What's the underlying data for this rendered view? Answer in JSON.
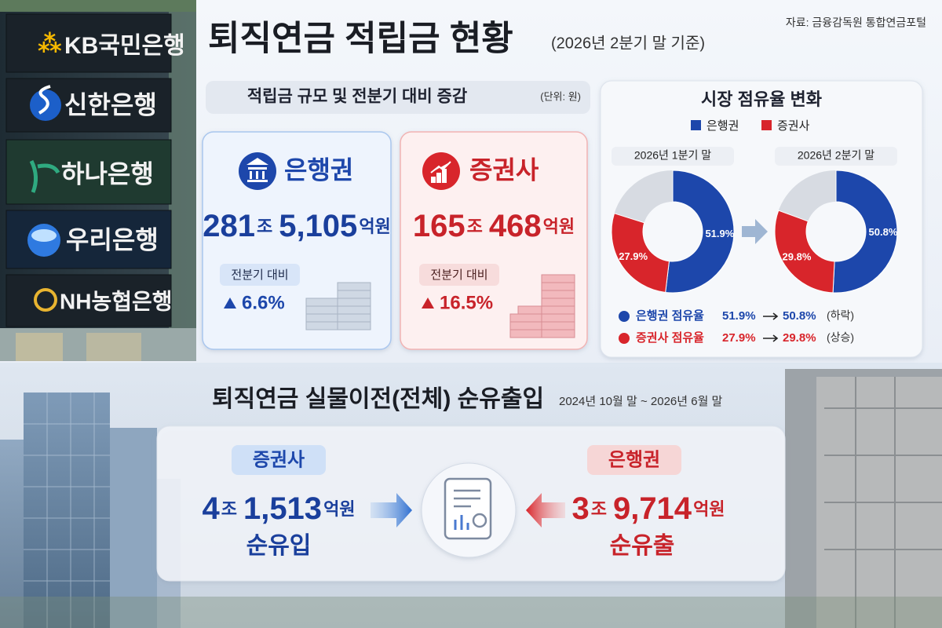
{
  "photo_signs": [
    "KB국민은행",
    "신한은행",
    "하나은행",
    "우리은행",
    "NH농협은행"
  ],
  "header": {
    "title": "퇴직연금 적립금 현황",
    "subtitle": "(2026년 2분기 말 기준)",
    "source": "자료: 금융감독원 통합연금포털"
  },
  "reserves": {
    "title": "적립금 규모 및 전분기 대비 증감",
    "unit": "(단위: 원)",
    "cards": [
      {
        "name": "은행권",
        "amount": [
          "281",
          "조",
          "5,105",
          "억원"
        ],
        "compare_label": "전분기 대비",
        "change": "6.6%"
      },
      {
        "name": "증권사",
        "amount": [
          "165",
          "조",
          "468",
          "억원"
        ],
        "compare_label": "전분기 대비",
        "change": "16.5%"
      }
    ]
  },
  "share": {
    "type": "pie",
    "title": "시장 점유율 변화",
    "series": [
      {
        "name": "은행권",
        "color": "#1d47ab"
      },
      {
        "name": "증권사",
        "color": "#d8252b"
      }
    ],
    "periods": [
      {
        "label": "2026년 1분기 말",
        "values": [
          51.9,
          27.9
        ],
        "value_labels": [
          "51.9%",
          "27.9%"
        ]
      },
      {
        "label": "2026년 2분기 말",
        "values": [
          50.8,
          29.8
        ],
        "value_labels": [
          "50.8%",
          "29.8%"
        ]
      }
    ],
    "summary": [
      {
        "label": "은행권 점유율",
        "from": "51.9%",
        "to": "50.8%",
        "note": "(하락)"
      },
      {
        "label": "증권사 점유율",
        "from": "27.9%",
        "to": "29.8%",
        "note": "(상승)"
      }
    ]
  },
  "transfer": {
    "title": "퇴직연금 실물이전(전체) 순유출입",
    "period": "2024년 10월 말 ~ 2026년 6월 말",
    "inflow": {
      "label": "증권사",
      "amount": [
        "4",
        "조",
        "1,513",
        "억원"
      ],
      "result": "순유입"
    },
    "outflow": {
      "label": "은행권",
      "amount": [
        "3",
        "조",
        "9,714",
        "억원"
      ],
      "result": "순유출"
    }
  }
}
